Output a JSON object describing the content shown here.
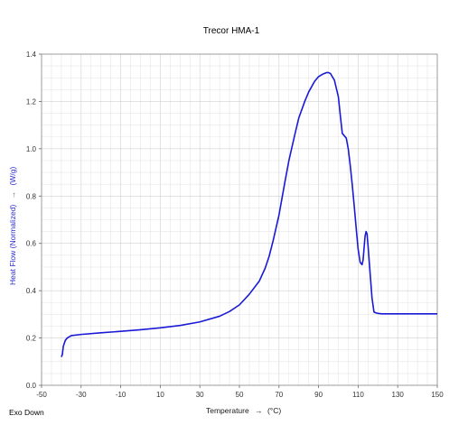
{
  "chart_data": {
    "type": "line",
    "title": "Trecor HMA-1",
    "xlabel": "Temperature",
    "xlabel_arrow": "→",
    "xunit": "(°C)",
    "ylabel": "Heat Flow (Normalized)",
    "ylabel_arrow": "→",
    "yunit": "(W/g)",
    "annotation": "Exo Down",
    "xlim": [
      -50,
      150
    ],
    "ylim": [
      0,
      1.4
    ],
    "x_ticks": [
      -50,
      -30,
      -10,
      10,
      30,
      50,
      70,
      90,
      110,
      130,
      150
    ],
    "y_ticks": [
      0.0,
      0.2,
      0.4,
      0.6,
      0.8,
      1.0,
      1.2,
      1.4
    ],
    "x_tick_labels": [
      "-50",
      "-30",
      "-10",
      "10",
      "30",
      "50",
      "70",
      "90",
      "110",
      "130",
      "150"
    ],
    "y_tick_labels": [
      "0.0",
      "0.2",
      "0.4",
      "0.6",
      "0.8",
      "1.0",
      "1.2",
      "1.4"
    ],
    "grid": true,
    "series": [
      {
        "color": "#1a1ad6",
        "x": [
          -40,
          -39.5,
          -39,
          -38,
          -37,
          -35,
          -30,
          -20,
          -10,
          0,
          10,
          20,
          30,
          40,
          45,
          50,
          55,
          60,
          63,
          65,
          67,
          70,
          73,
          75,
          78,
          80,
          83,
          85,
          88,
          90,
          92,
          94,
          95,
          96,
          98,
          100,
          101,
          102,
          103,
          104,
          105,
          106,
          107,
          108,
          109,
          110,
          111,
          112,
          112.5,
          113,
          113.5,
          114,
          114.5,
          115,
          116,
          117,
          118,
          119,
          120,
          121,
          122,
          125,
          130,
          140,
          150
        ],
        "y": [
          0.12,
          0.13,
          0.165,
          0.19,
          0.2,
          0.21,
          0.215,
          0.222,
          0.228,
          0.235,
          0.243,
          0.253,
          0.268,
          0.292,
          0.312,
          0.34,
          0.385,
          0.44,
          0.495,
          0.545,
          0.61,
          0.72,
          0.86,
          0.95,
          1.06,
          1.13,
          1.2,
          1.24,
          1.285,
          1.305,
          1.315,
          1.322,
          1.322,
          1.318,
          1.29,
          1.22,
          1.14,
          1.065,
          1.055,
          1.045,
          1.0,
          0.93,
          0.85,
          0.76,
          0.665,
          0.575,
          0.52,
          0.51,
          0.53,
          0.58,
          0.63,
          0.65,
          0.64,
          0.59,
          0.48,
          0.37,
          0.31,
          0.306,
          0.304,
          0.303,
          0.302,
          0.302,
          0.302,
          0.302,
          0.302
        ]
      }
    ]
  }
}
